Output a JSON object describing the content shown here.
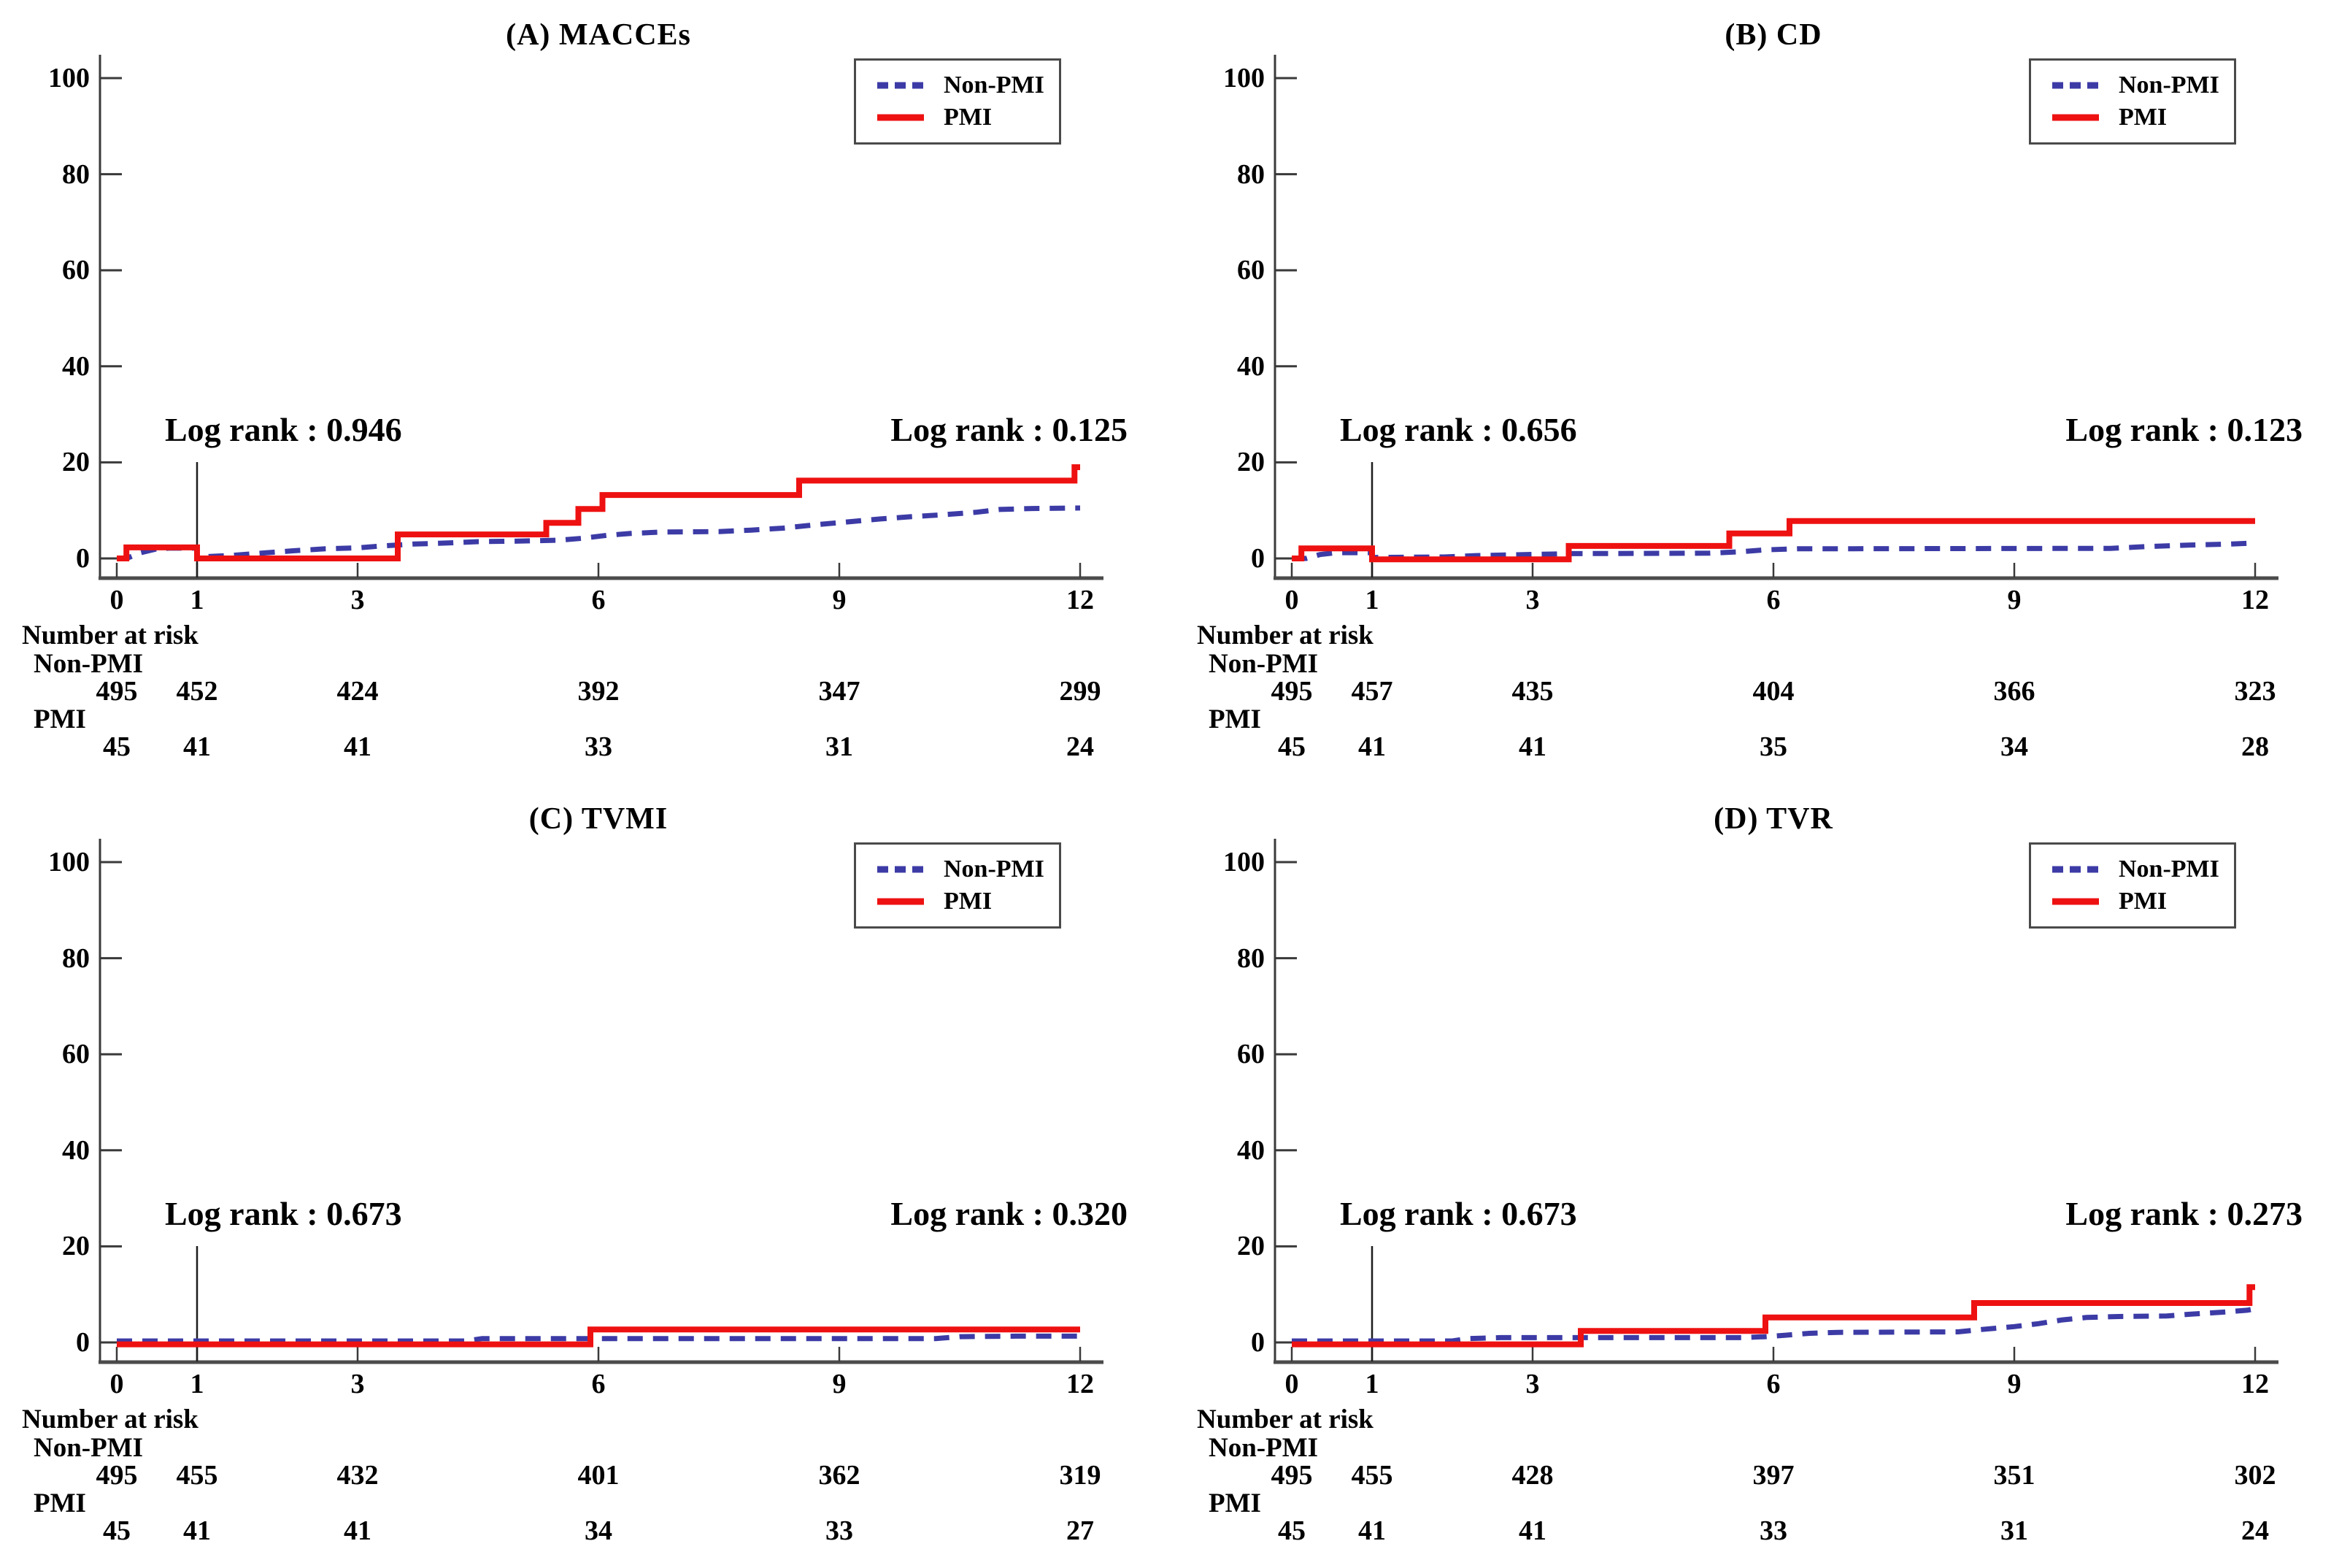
{
  "figure": {
    "background": "#ffffff",
    "legend": {
      "items": [
        {
          "label": "Non-PMI",
          "style": "dashed",
          "color": "#3c3ba6"
        },
        {
          "label": "PMI",
          "style": "solid",
          "color": "#ee1111"
        }
      ],
      "position": "top-right",
      "border_color": "#4a4a4a"
    },
    "colors": {
      "pmi": "#ee1111",
      "non_pmi": "#3c3ba6",
      "axis": "#3a3a3a",
      "frame": "#4b4b4b",
      "landmark_line": "#1c1c1c",
      "text": "#000000"
    },
    "risk_header": "Number at risk"
  },
  "chart_data": [
    {
      "id": "A",
      "type": "line",
      "title": "(A) MACCEs",
      "log_rank_left": "Log rank : 0.946",
      "log_rank_right": "Log rank : 0.125",
      "x_ticks": [
        0,
        1,
        3,
        6,
        9,
        12
      ],
      "y_ticks": [
        0,
        20,
        40,
        60,
        80,
        100
      ],
      "xlim": [
        0,
        12.4
      ],
      "ylim": [
        0,
        100
      ],
      "landmark_x": 1,
      "grid": false,
      "series": [
        {
          "name": "Non-PMI",
          "line_style": "dashed",
          "color": "#3c3ba6",
          "points": [
            [
              0,
              0
            ],
            [
              0.12,
              0
            ],
            [
              0.3,
              1.2
            ],
            [
              0.5,
              2.0
            ],
            [
              0.65,
              2.15
            ],
            [
              1,
              2.15
            ],
            [
              1,
              0.3
            ],
            [
              1.4,
              0.6
            ],
            [
              1.8,
              1.1
            ],
            [
              2.2,
              1.6
            ],
            [
              2.6,
              2.0
            ],
            [
              3,
              2.2
            ],
            [
              3.3,
              2.6
            ],
            [
              3.7,
              3.0
            ],
            [
              4.1,
              3.2
            ],
            [
              4.5,
              3.5
            ],
            [
              5,
              3.6
            ],
            [
              5.5,
              3.8
            ],
            [
              5.8,
              4.2
            ],
            [
              6.1,
              4.8
            ],
            [
              6.4,
              5.2
            ],
            [
              6.8,
              5.5
            ],
            [
              7.5,
              5.6
            ],
            [
              7.9,
              5.9
            ],
            [
              8.3,
              6.3
            ],
            [
              8.7,
              7.0
            ],
            [
              9.1,
              7.6
            ],
            [
              9.5,
              8.2
            ],
            [
              9.9,
              8.7
            ],
            [
              10.3,
              9.1
            ],
            [
              10.7,
              9.6
            ],
            [
              11,
              10.2
            ],
            [
              11.4,
              10.4
            ],
            [
              12,
              10.5
            ]
          ]
        },
        {
          "name": "PMI",
          "line_style": "solid",
          "color": "#ee1111",
          "points": [
            [
              0,
              0
            ],
            [
              0.12,
              0
            ],
            [
              0.12,
              2.3
            ],
            [
              1,
              2.3
            ],
            [
              1,
              0
            ],
            [
              3.5,
              0
            ],
            [
              3.5,
              5
            ],
            [
              5.35,
              5
            ],
            [
              5.35,
              7.4
            ],
            [
              5.75,
              7.4
            ],
            [
              5.75,
              10.3
            ],
            [
              6.05,
              10.3
            ],
            [
              6.05,
              13.2
            ],
            [
              8.5,
              13.2
            ],
            [
              8.5,
              16.2
            ],
            [
              11.93,
              16.2
            ],
            [
              11.93,
              19
            ],
            [
              12,
              19
            ]
          ]
        }
      ],
      "risk_table": {
        "header": "Number at risk",
        "time_points": [
          0,
          1,
          3,
          6,
          9,
          12
        ],
        "rows": [
          {
            "label": "Non-PMI",
            "values": [
              495,
              452,
              424,
              392,
              347,
              299
            ]
          },
          {
            "label": "PMI",
            "values": [
              45,
              41,
              41,
              33,
              31,
              24
            ]
          }
        ]
      }
    },
    {
      "id": "B",
      "type": "line",
      "title": "(B) CD",
      "log_rank_left": "Log rank : 0.656",
      "log_rank_right": "Log rank : 0.123",
      "x_ticks": [
        0,
        1,
        3,
        6,
        9,
        12
      ],
      "y_ticks": [
        0,
        20,
        40,
        60,
        80,
        100
      ],
      "xlim": [
        0,
        12.4
      ],
      "ylim": [
        0,
        100
      ],
      "landmark_x": 1,
      "grid": false,
      "series": [
        {
          "name": "Non-PMI",
          "line_style": "dashed",
          "color": "#3c3ba6",
          "points": [
            [
              0,
              0
            ],
            [
              0.18,
              0
            ],
            [
              0.35,
              0.8
            ],
            [
              0.55,
              1.2
            ],
            [
              1,
              1.2
            ],
            [
              1,
              0.2
            ],
            [
              1.9,
              0.3
            ],
            [
              2.3,
              0.6
            ],
            [
              2.9,
              0.8
            ],
            [
              3.5,
              1.0
            ],
            [
              5.2,
              1.1
            ],
            [
              5.6,
              1.4
            ],
            [
              5.9,
              1.8
            ],
            [
              6.3,
              2.0
            ],
            [
              10.2,
              2.1
            ],
            [
              10.7,
              2.5
            ],
            [
              11.2,
              2.8
            ],
            [
              11.7,
              3.0
            ],
            [
              12,
              3.2
            ]
          ]
        },
        {
          "name": "PMI",
          "line_style": "solid",
          "color": "#ee1111",
          "points": [
            [
              0,
              0
            ],
            [
              0.12,
              0
            ],
            [
              0.12,
              2.1
            ],
            [
              1,
              2.1
            ],
            [
              1,
              -0.2
            ],
            [
              3.45,
              -0.2
            ],
            [
              3.45,
              2.6
            ],
            [
              5.45,
              2.6
            ],
            [
              5.45,
              5.2
            ],
            [
              6.2,
              5.2
            ],
            [
              6.2,
              7.8
            ],
            [
              12,
              7.8
            ]
          ]
        }
      ],
      "risk_table": {
        "header": "Number at risk",
        "time_points": [
          0,
          1,
          3,
          6,
          9,
          12
        ],
        "rows": [
          {
            "label": "Non-PMI",
            "values": [
              495,
              457,
              435,
              404,
              366,
              323
            ]
          },
          {
            "label": "PMI",
            "values": [
              45,
              41,
              41,
              35,
              34,
              28
            ]
          }
        ]
      }
    },
    {
      "id": "C",
      "type": "line",
      "title": "(C) TVMI",
      "log_rank_left": "Log rank : 0.673",
      "log_rank_right": "Log rank : 0.320",
      "x_ticks": [
        0,
        1,
        3,
        6,
        9,
        12
      ],
      "y_ticks": [
        0,
        20,
        40,
        60,
        80,
        100
      ],
      "xlim": [
        0,
        12.4
      ],
      "ylim": [
        0,
        100
      ],
      "landmark_x": 1,
      "grid": false,
      "series": [
        {
          "name": "Non-PMI",
          "line_style": "dashed",
          "color": "#3c3ba6",
          "points": [
            [
              0,
              0.3
            ],
            [
              4.35,
              0.3
            ],
            [
              4.55,
              0.8
            ],
            [
              10.2,
              0.8
            ],
            [
              10.5,
              1.2
            ],
            [
              11.2,
              1.3
            ],
            [
              12,
              1.3
            ]
          ]
        },
        {
          "name": "PMI",
          "line_style": "solid",
          "color": "#ee1111",
          "points": [
            [
              0,
              -0.4
            ],
            [
              5.9,
              -0.4
            ],
            [
              5.9,
              2.7
            ],
            [
              12,
              2.7
            ]
          ]
        }
      ],
      "risk_table": {
        "header": "Number at risk",
        "time_points": [
          0,
          1,
          3,
          6,
          9,
          12
        ],
        "rows": [
          {
            "label": "Non-PMI",
            "values": [
              495,
              455,
              432,
              401,
              362,
              319
            ]
          },
          {
            "label": "PMI",
            "values": [
              45,
              41,
              41,
              34,
              33,
              27
            ]
          }
        ]
      }
    },
    {
      "id": "D",
      "type": "line",
      "title": "(D) TVR",
      "log_rank_left": "Log rank : 0.673",
      "log_rank_right": "Log rank : 0.273",
      "x_ticks": [
        0,
        1,
        3,
        6,
        9,
        12
      ],
      "y_ticks": [
        0,
        20,
        40,
        60,
        80,
        100
      ],
      "xlim": [
        0,
        12.4
      ],
      "ylim": [
        0,
        100
      ],
      "landmark_x": 1,
      "grid": false,
      "series": [
        {
          "name": "Non-PMI",
          "line_style": "dashed",
          "color": "#3c3ba6",
          "points": [
            [
              0,
              0.3
            ],
            [
              2.0,
              0.3
            ],
            [
              2.2,
              0.8
            ],
            [
              2.6,
              1.0
            ],
            [
              5.6,
              1.0
            ],
            [
              5.9,
              1.2
            ],
            [
              6.15,
              1.5
            ],
            [
              6.45,
              1.9
            ],
            [
              6.8,
              2.1
            ],
            [
              8.3,
              2.2
            ],
            [
              8.6,
              2.7
            ],
            [
              9.0,
              3.3
            ],
            [
              9.3,
              3.9
            ],
            [
              9.6,
              4.7
            ],
            [
              9.9,
              5.2
            ],
            [
              10.3,
              5.4
            ],
            [
              10.9,
              5.5
            ],
            [
              11.2,
              5.9
            ],
            [
              11.6,
              6.3
            ],
            [
              11.9,
              6.7
            ],
            [
              12,
              7.0
            ]
          ]
        },
        {
          "name": "PMI",
          "line_style": "solid",
          "color": "#ee1111",
          "points": [
            [
              0,
              -0.4
            ],
            [
              3.6,
              -0.4
            ],
            [
              3.6,
              2.4
            ],
            [
              5.9,
              2.4
            ],
            [
              5.9,
              5.2
            ],
            [
              8.5,
              5.2
            ],
            [
              8.5,
              8.2
            ],
            [
              11.93,
              8.2
            ],
            [
              11.93,
              11.5
            ],
            [
              12,
              11.5
            ]
          ]
        }
      ],
      "risk_table": {
        "header": "Number at risk",
        "time_points": [
          0,
          1,
          3,
          6,
          9,
          12
        ],
        "rows": [
          {
            "label": "Non-PMI",
            "values": [
              495,
              455,
              428,
              397,
              351,
              302
            ]
          },
          {
            "label": "PMI",
            "values": [
              45,
              41,
              41,
              33,
              31,
              24
            ]
          }
        ]
      }
    }
  ]
}
